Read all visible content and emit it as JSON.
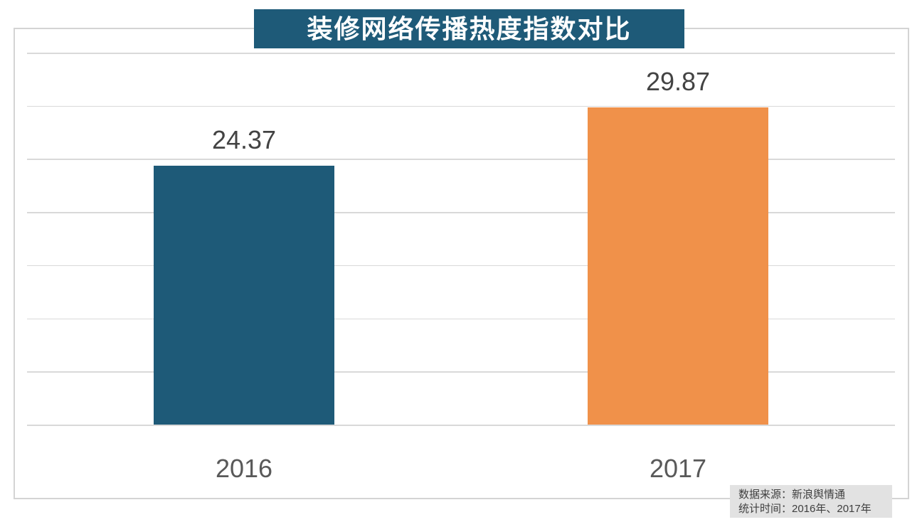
{
  "header": {
    "title": "装修网络传播热度指数对比",
    "title_bg": "#1e5a78",
    "title_color": "#ffffff"
  },
  "chart_data": {
    "type": "bar",
    "title": "装修网络传播热度指数对比",
    "categories": [
      "2016",
      "2017"
    ],
    "values": [
      24.37,
      29.87
    ],
    "value_labels": [
      "24.37",
      "29.87"
    ],
    "bar_colors": [
      "#1e5a78",
      "#f0914a"
    ],
    "ylim": [
      0,
      35
    ],
    "grid_step": 5,
    "grid": true,
    "legend": "none",
    "gridline_color": "#d9d9d9",
    "panel_border_color": "#d4d4d4",
    "value_label_color": "#434343",
    "category_label_color": "#595959"
  },
  "footer": {
    "source_line": "数据来源：新浪舆情通",
    "period_line": "统计时间：2016年、2017年",
    "background": "#e2e2e2",
    "text_color": "#3f3f3f"
  }
}
